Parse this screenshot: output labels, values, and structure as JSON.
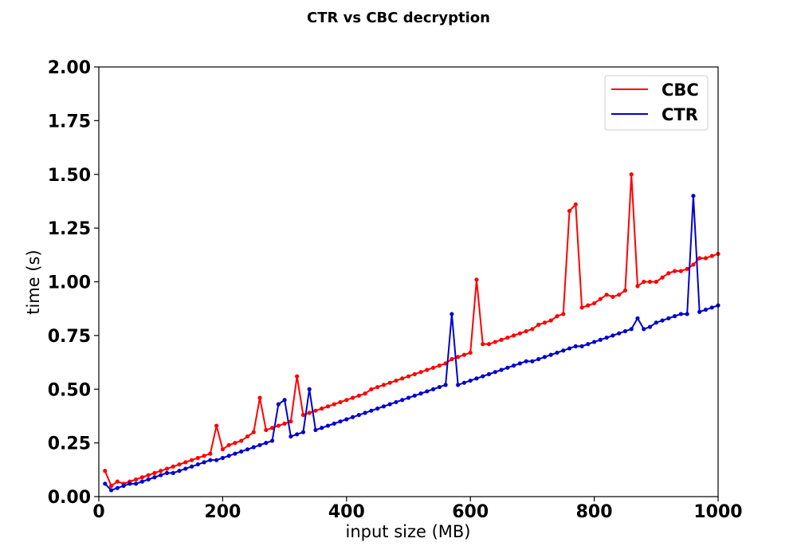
{
  "chart_data": {
    "type": "line",
    "title": "CTR vs CBC decryption",
    "xlabel": "input size (MB)",
    "ylabel": "time (s)",
    "xlim": [
      0,
      1000
    ],
    "ylim": [
      0,
      2.0
    ],
    "xticks": [
      0,
      200,
      400,
      600,
      800,
      1000
    ],
    "xtick_labels": [
      "0",
      "200",
      "400",
      "600",
      "800",
      "1000"
    ],
    "yticks": [
      0,
      0.25,
      0.5,
      0.75,
      1.0,
      1.25,
      1.5,
      1.75,
      2.0
    ],
    "ytick_labels": [
      "0.00",
      "0.25",
      "0.50",
      "0.75",
      "1.00",
      "1.25",
      "1.50",
      "1.75",
      "2.00"
    ],
    "grid": false,
    "legend_position": "top-right",
    "x": [
      10,
      20,
      30,
      40,
      50,
      60,
      70,
      80,
      90,
      100,
      110,
      120,
      130,
      140,
      150,
      160,
      170,
      180,
      190,
      200,
      210,
      220,
      230,
      240,
      250,
      260,
      270,
      280,
      290,
      300,
      310,
      320,
      330,
      340,
      350,
      360,
      370,
      380,
      390,
      400,
      410,
      420,
      430,
      440,
      450,
      460,
      470,
      480,
      490,
      500,
      510,
      520,
      530,
      540,
      550,
      560,
      570,
      580,
      590,
      600,
      610,
      620,
      630,
      640,
      650,
      660,
      670,
      680,
      690,
      700,
      710,
      720,
      730,
      740,
      750,
      760,
      770,
      780,
      790,
      800,
      810,
      820,
      830,
      840,
      850,
      860,
      870,
      880,
      890,
      900,
      910,
      920,
      930,
      940,
      950,
      960,
      970,
      980,
      990,
      1000
    ],
    "series": [
      {
        "name": "CBC",
        "color": "#ff0000",
        "values": [
          0.12,
          0.05,
          0.07,
          0.06,
          0.07,
          0.08,
          0.09,
          0.1,
          0.11,
          0.12,
          0.13,
          0.14,
          0.15,
          0.16,
          0.17,
          0.18,
          0.19,
          0.2,
          0.33,
          0.22,
          0.24,
          0.25,
          0.26,
          0.28,
          0.3,
          0.46,
          0.31,
          0.32,
          0.33,
          0.34,
          0.35,
          0.56,
          0.38,
          0.39,
          0.4,
          0.41,
          0.42,
          0.43,
          0.44,
          0.45,
          0.46,
          0.47,
          0.48,
          0.5,
          0.51,
          0.52,
          0.53,
          0.54,
          0.55,
          0.56,
          0.57,
          0.58,
          0.59,
          0.6,
          0.61,
          0.62,
          0.64,
          0.65,
          0.66,
          0.67,
          1.01,
          0.71,
          0.71,
          0.72,
          0.73,
          0.74,
          0.75,
          0.76,
          0.77,
          0.78,
          0.8,
          0.81,
          0.82,
          0.84,
          0.85,
          1.33,
          1.36,
          0.88,
          0.89,
          0.9,
          0.92,
          0.94,
          0.93,
          0.94,
          0.96,
          1.5,
          0.98,
          1.0,
          1.0,
          1.0,
          1.02,
          1.04,
          1.05,
          1.05,
          1.06,
          1.08,
          1.11,
          1.11,
          1.12,
          1.13
        ]
      },
      {
        "name": "CTR",
        "color": "#0000cc",
        "values": [
          0.06,
          0.03,
          0.04,
          0.05,
          0.06,
          0.06,
          0.07,
          0.08,
          0.09,
          0.1,
          0.11,
          0.11,
          0.12,
          0.13,
          0.14,
          0.15,
          0.16,
          0.17,
          0.17,
          0.18,
          0.19,
          0.2,
          0.21,
          0.22,
          0.23,
          0.24,
          0.25,
          0.26,
          0.43,
          0.45,
          0.28,
          0.29,
          0.3,
          0.5,
          0.31,
          0.32,
          0.33,
          0.34,
          0.35,
          0.36,
          0.37,
          0.38,
          0.39,
          0.4,
          0.41,
          0.42,
          0.43,
          0.44,
          0.45,
          0.46,
          0.47,
          0.48,
          0.49,
          0.5,
          0.51,
          0.52,
          0.85,
          0.52,
          0.53,
          0.54,
          0.55,
          0.56,
          0.57,
          0.58,
          0.59,
          0.6,
          0.61,
          0.62,
          0.63,
          0.63,
          0.64,
          0.65,
          0.66,
          0.67,
          0.68,
          0.69,
          0.7,
          0.7,
          0.71,
          0.72,
          0.73,
          0.74,
          0.75,
          0.76,
          0.77,
          0.78,
          0.83,
          0.78,
          0.79,
          0.81,
          0.82,
          0.83,
          0.84,
          0.85,
          0.85,
          1.4,
          0.86,
          0.87,
          0.88,
          0.89
        ]
      }
    ]
  }
}
